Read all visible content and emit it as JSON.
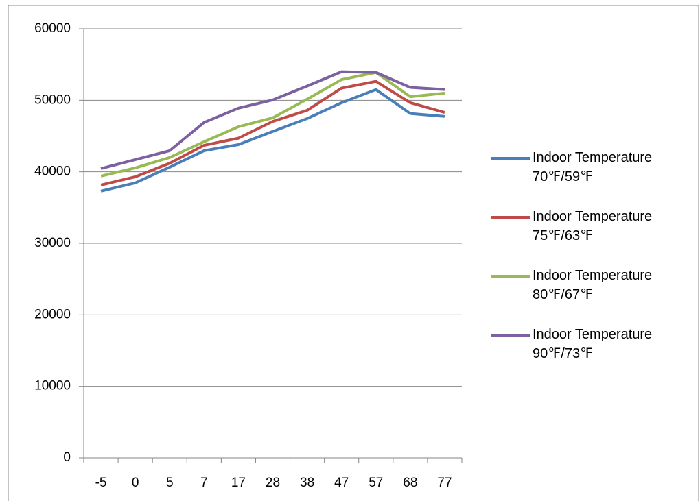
{
  "chart_data": {
    "type": "line",
    "categories": [
      "-5",
      "0",
      "5",
      "7",
      "17",
      "28",
      "38",
      "47",
      "57",
      "68",
      "77"
    ],
    "series": [
      {
        "name": "Indoor Temperature 70℉/59℉",
        "color": "#4a7ebb",
        "values": [
          37300,
          38450,
          40650,
          42950,
          43800,
          45650,
          47450,
          49650,
          51500,
          48150,
          47750
        ]
      },
      {
        "name": "Indoor Temperature 75℉/63℉",
        "color": "#be4b48",
        "values": [
          38150,
          39300,
          41200,
          43700,
          44700,
          47050,
          48600,
          51700,
          52650,
          49650,
          48300
        ]
      },
      {
        "name": "Indoor Temperature 80℉/67℉",
        "color": "#98b954",
        "values": [
          39400,
          40550,
          42000,
          44200,
          46300,
          47550,
          50150,
          52900,
          53900,
          50500,
          51000
        ]
      },
      {
        "name": "Indoor Temperature 90℉/73℉",
        "color": "#7d60a0",
        "values": [
          40450,
          41700,
          42950,
          46900,
          48900,
          50050,
          52000,
          54000,
          53900,
          51800,
          51500
        ]
      }
    ],
    "ylim": [
      0,
      60000
    ],
    "yticks": [
      0,
      10000,
      20000,
      30000,
      40000,
      50000,
      60000
    ],
    "grid": true,
    "legend": "right"
  }
}
